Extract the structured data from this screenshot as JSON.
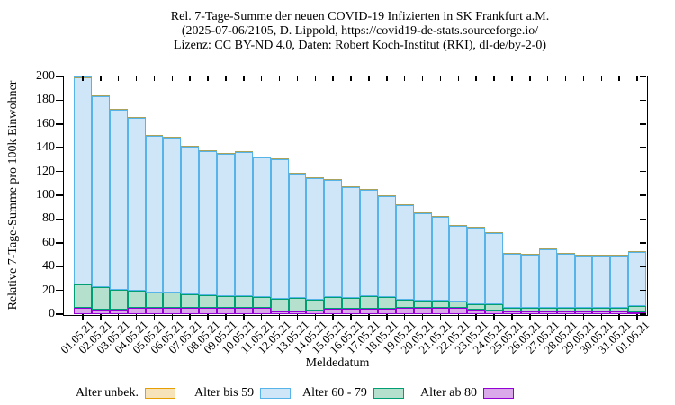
{
  "header": {
    "title_line1": "Rel. 7-Tage-Summe der neuen COVID-19 Infizierten in SK Frankfurt a.M.",
    "title_line2": "(2025-07-06/2105, D. Lippold, https://covid19-de-stats.sourceforge.io/",
    "title_line3": "Lizenz: CC BY-ND 4.0, Daten: Robert Koch-Institut (RKI), dl-de/by-2-0)"
  },
  "chart_data": {
    "type": "bar",
    "stacked": true,
    "title": "Rel. 7-Tage-Summe der neuen COVID-19 Infizierten in SK Frankfurt a.M. (2025-07-06/2105, D. Lippold, https://covid19-de-stats.sourceforge.io/ Lizenz: CC BY-ND 4.0, Daten: Robert Koch-Institut (RKI), dl-de/by-2-0)",
    "xlabel": "Meldedatum",
    "ylabel": "Relative 7-Tage-Summe pro 100k Einwohner",
    "ylim": [
      0,
      200
    ],
    "ytick_step": 20,
    "grid": false,
    "legend_position": "bottom",
    "categories": [
      "01.05.21",
      "02.05.21",
      "03.05.21",
      "04.05.21",
      "05.05.21",
      "06.05.21",
      "07.05.21",
      "08.05.21",
      "09.05.21",
      "10.05.21",
      "11.05.21",
      "12.05.21",
      "13.05.21",
      "14.05.21",
      "15.05.21",
      "16.05.21",
      "17.05.21",
      "18.05.21",
      "19.05.21",
      "20.05.21",
      "21.05.21",
      "22.05.21",
      "23.05.21",
      "24.05.21",
      "25.05.21",
      "26.05.21",
      "27.05.21",
      "28.05.21",
      "29.05.21",
      "30.05.21",
      "31.05.21",
      "01.06.21"
    ],
    "series": [
      {
        "name": "Alter ab 80",
        "stroke": "#9400d3",
        "fill": "#d9a9ea",
        "values": [
          5,
          4,
          4,
          5.5,
          5,
          5.5,
          5,
          5,
          5.5,
          5,
          5,
          2.5,
          2,
          3,
          4.5,
          4.5,
          4.5,
          4.5,
          5.5,
          5,
          5,
          5,
          4,
          3,
          2,
          2,
          2,
          2,
          2,
          2,
          2,
          1.5
        ]
      },
      {
        "name": "Alter 60 - 79",
        "stroke": "#009e73",
        "fill": "#b5e0cd",
        "values": [
          20,
          19,
          16.5,
          14,
          13.5,
          12.5,
          11.5,
          11,
          10,
          10,
          9.5,
          10.5,
          11.5,
          9.5,
          10,
          9.5,
          10.5,
          10,
          6.5,
          6.5,
          6.5,
          5.5,
          4,
          5,
          3,
          3,
          3,
          3,
          3,
          3.5,
          3.5,
          5.5
        ]
      },
      {
        "name": "Alter bis 59",
        "stroke": "#56b4e9",
        "fill": "#cee6f7",
        "values": [
          175,
          160,
          151.5,
          146,
          131.5,
          130.5,
          124.5,
          121,
          119.5,
          121,
          117.5,
          117.5,
          105,
          102,
          98.5,
          93,
          89.5,
          84.5,
          79.5,
          73,
          70.5,
          63.5,
          64.5,
          60.5,
          46,
          45,
          49.5,
          45.5,
          44,
          43.5,
          43.5,
          45.5
        ]
      },
      {
        "name": "Alter unbek.",
        "stroke": "#e69f00",
        "fill": "#f7e3ba",
        "values": [
          0,
          0,
          0,
          0,
          0,
          0,
          0,
          0,
          0,
          0,
          0,
          0,
          0,
          0,
          0,
          0,
          0,
          0,
          0,
          0,
          0,
          0,
          0,
          0,
          0,
          0,
          0,
          0,
          0,
          0,
          0,
          0
        ]
      }
    ],
    "legend": [
      {
        "label": "Alter unbek.",
        "stroke": "#e69f00",
        "fill": "#f7e3ba"
      },
      {
        "label": "Alter bis 59",
        "stroke": "#56b4e9",
        "fill": "#cee6f7"
      },
      {
        "label": "Alter 60 - 79",
        "stroke": "#009e73",
        "fill": "#b5e0cd"
      },
      {
        "label": "Alter ab 80",
        "stroke": "#9400d3",
        "fill": "#d9a9ea"
      }
    ],
    "colors": {
      "axis": "#000000",
      "background": "#ffffff",
      "zero_series_topline": "#a9a25c"
    }
  }
}
